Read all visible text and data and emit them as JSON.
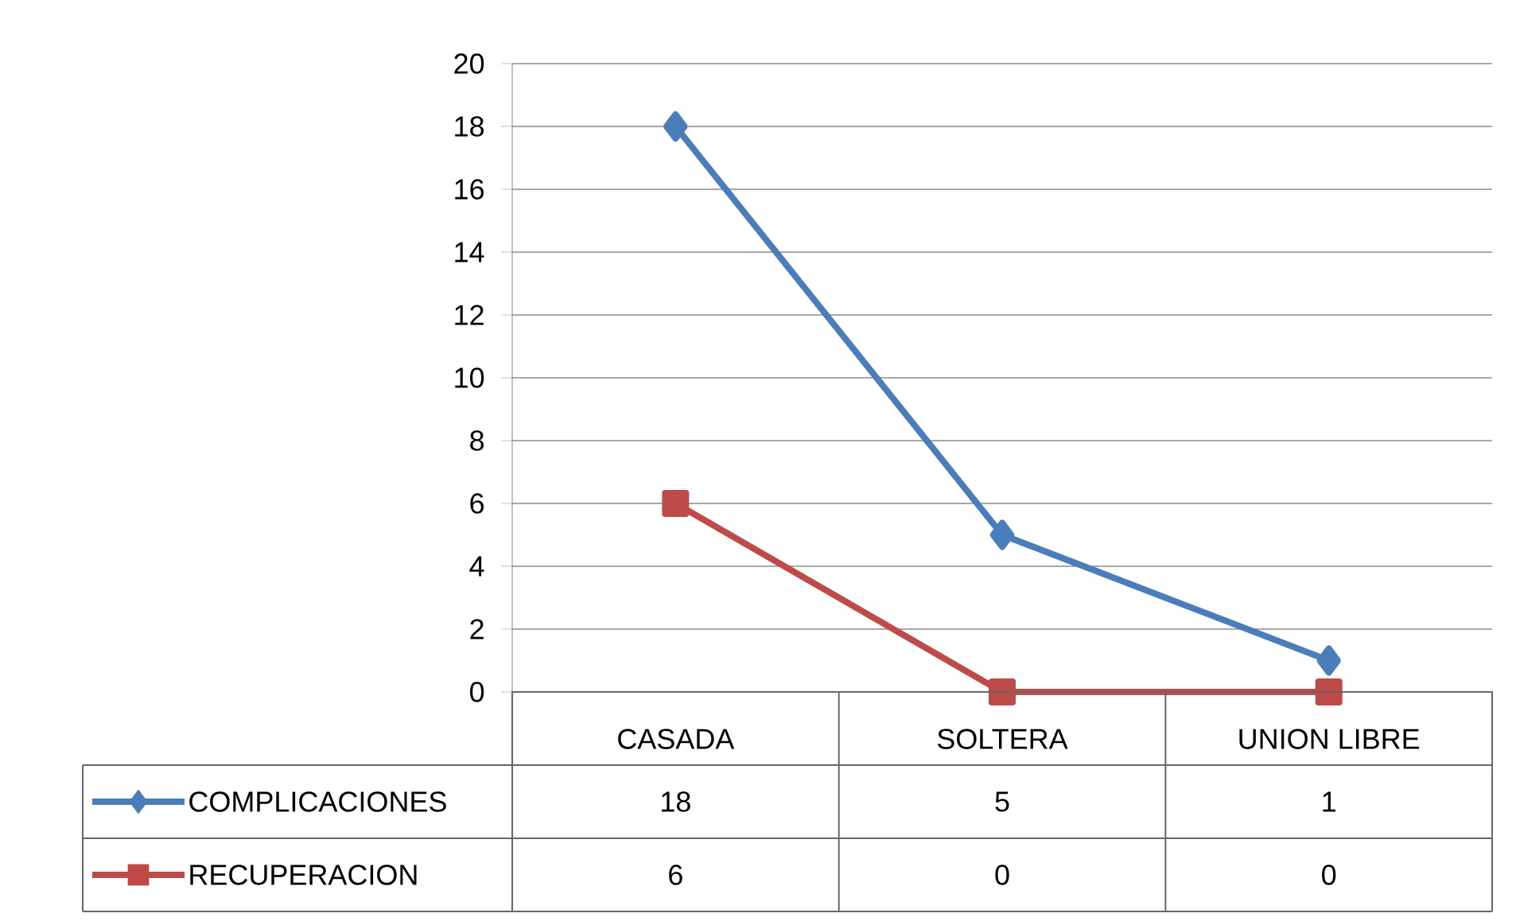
{
  "chart_data": {
    "type": "line",
    "categories": [
      "CASADA",
      "SOLTERA",
      "UNION LIBRE"
    ],
    "series": [
      {
        "name": "COMPLICACIONES",
        "color": "#4a7ebb",
        "marker": "diamond",
        "values": [
          18,
          5,
          1
        ]
      },
      {
        "name": "RECUPERACION",
        "color": "#be4b48",
        "marker": "square",
        "values": [
          6,
          0,
          0
        ]
      }
    ],
    "ylim": [
      0,
      20
    ],
    "yticks": [
      0,
      2,
      4,
      6,
      8,
      10,
      12,
      14,
      16,
      18,
      20
    ],
    "grid": "y",
    "legend": "bottom",
    "data_labels": true
  }
}
